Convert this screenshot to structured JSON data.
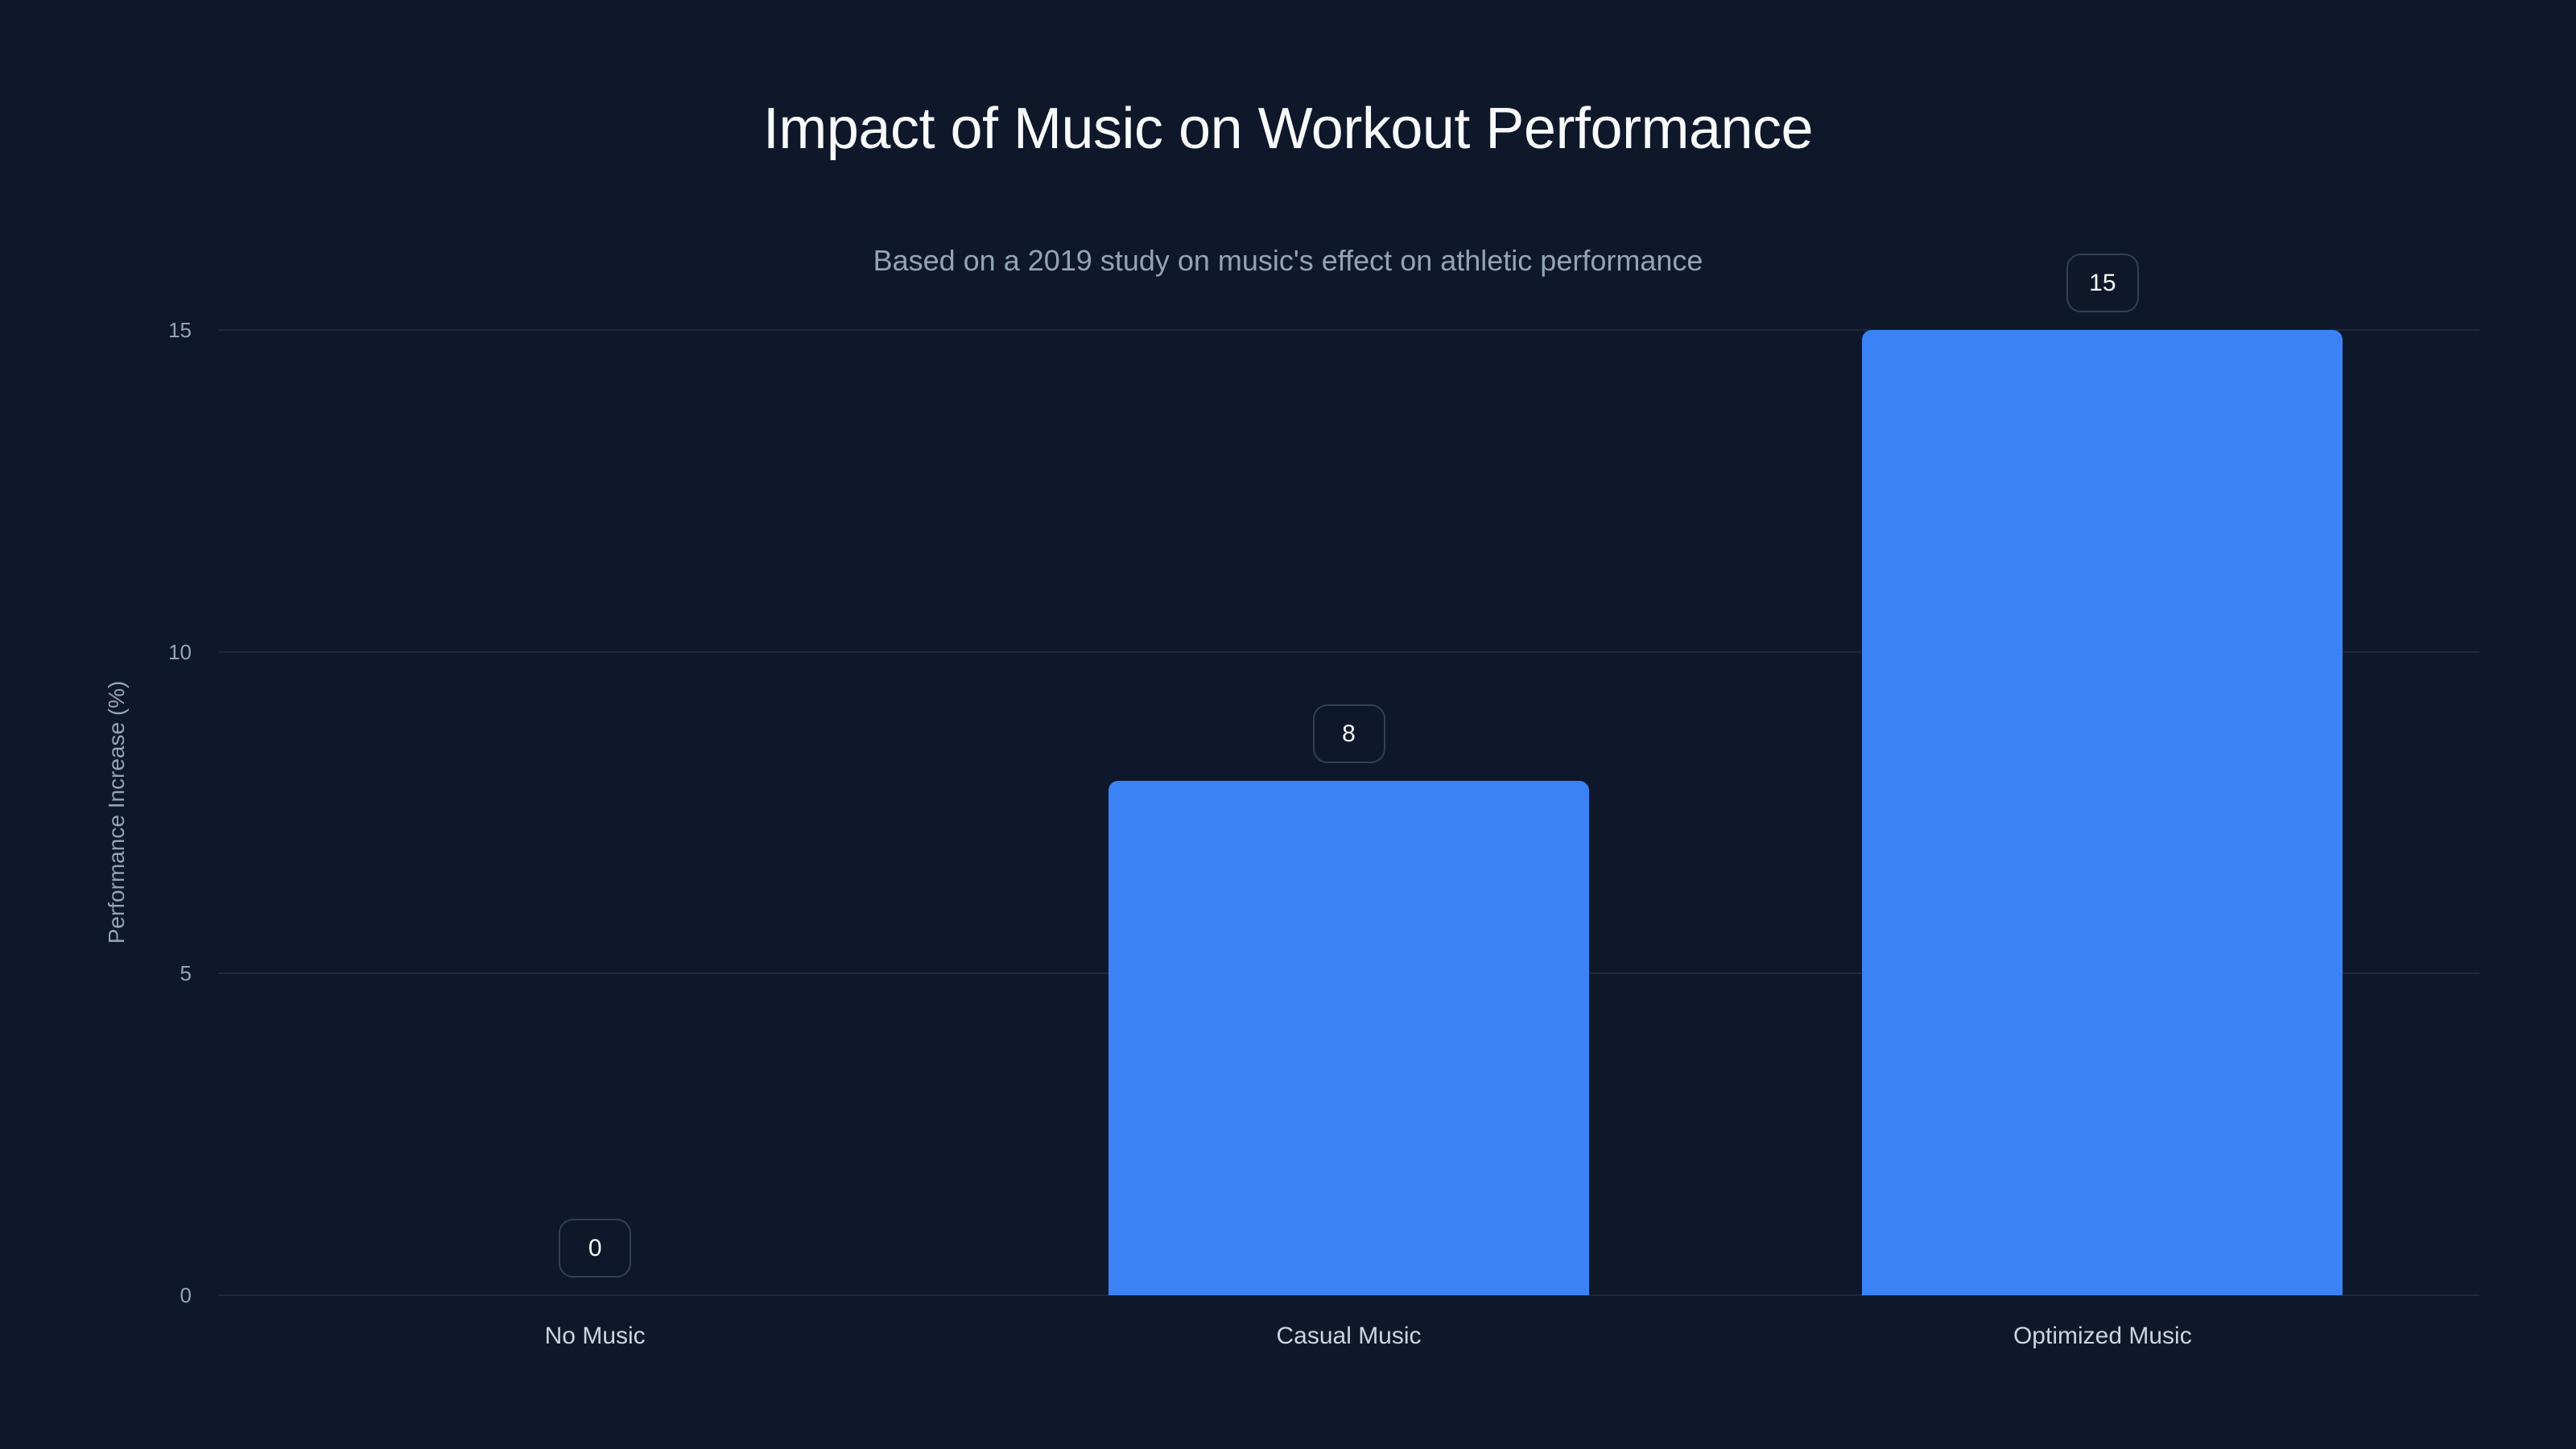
{
  "chart_data": {
    "type": "bar",
    "title": "Impact of Music on Workout Performance",
    "subtitle": "Based on a 2019 study on music's effect on athletic performance",
    "xlabel": "",
    "ylabel": "Performance Increase (%)",
    "categories": [
      "No Music",
      "Casual Music",
      "Optimized Music"
    ],
    "values": [
      0,
      8,
      15
    ],
    "data_labels": [
      "0",
      "8",
      "15"
    ],
    "ylim": [
      0,
      15
    ],
    "yticks": [
      0,
      5,
      10,
      15
    ],
    "ytick_labels": [
      "0",
      "5",
      "10",
      "15"
    ],
    "grid": true,
    "legend": null,
    "colors": {
      "background": "#0f172a",
      "bar": "#3b82f6",
      "gridline": "#1e293b",
      "title": "#f8fafc",
      "subtitle": "#94a3b8",
      "axis_text": "#94a3b8",
      "category_text": "#cbd5e1",
      "badge_border": "#334155"
    }
  }
}
